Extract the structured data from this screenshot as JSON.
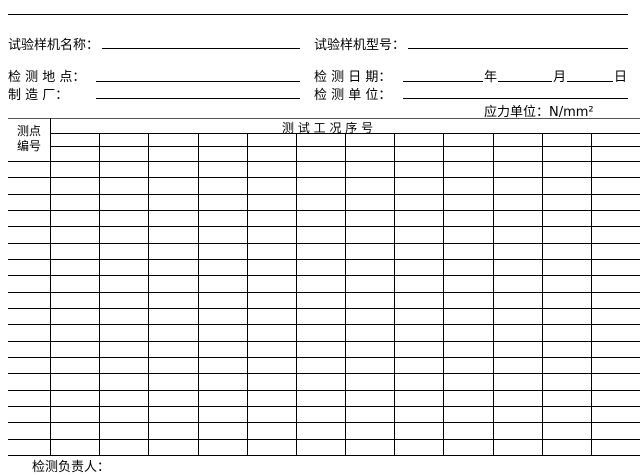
{
  "form": {
    "sample_name_label": "试验样机名称：",
    "sample_model_label": "试验样机型号：",
    "location_label": "检 测 地 点：",
    "date_label": "检 测 日 期：",
    "year": "年",
    "month": "月",
    "day": "日",
    "manufacturer_label": "制    造  厂：",
    "unit_label": "检 测 单 位：",
    "stress_unit": "应力单位：N/mm²"
  },
  "table": {
    "point_header_line1": "测点",
    "point_header_line2": "编号",
    "sequence_header": "测  试  工  况  序  号",
    "data_rows": 18,
    "data_columns": 12
  },
  "footer": {
    "inspector_label": "检测负责人："
  }
}
